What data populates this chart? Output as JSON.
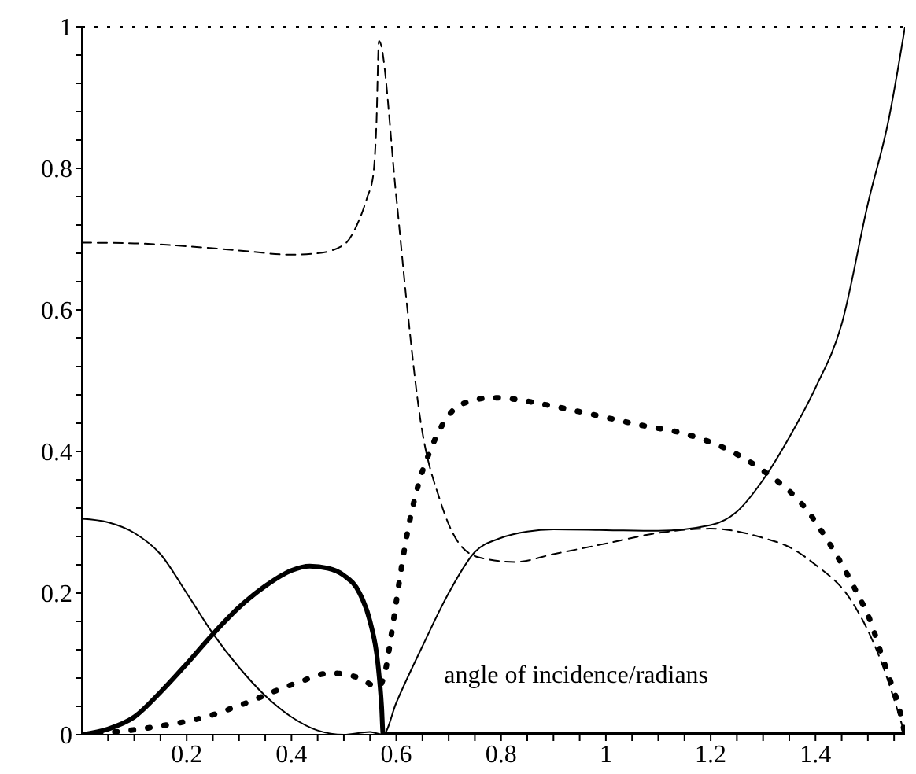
{
  "chart_data": {
    "type": "line",
    "xlabel": "angle of incidence/radians",
    "xlim": [
      0,
      1.5708
    ],
    "ylim": [
      0,
      1
    ],
    "xticks": [
      {
        "value": 0.05,
        "label": null
      },
      {
        "value": 0.1,
        "label": null
      },
      {
        "value": 0.15,
        "label": null
      },
      0.2,
      {
        "value": 0.25,
        "label": null
      },
      {
        "value": 0.3,
        "label": null
      },
      {
        "value": 0.35,
        "label": null
      },
      0.4,
      {
        "value": 0.45,
        "label": null
      },
      {
        "value": 0.5,
        "label": null
      },
      {
        "value": 0.55,
        "label": null
      },
      0.6,
      {
        "value": 0.65,
        "label": null
      },
      {
        "value": 0.7,
        "label": null
      },
      {
        "value": 0.75,
        "label": null
      },
      0.8,
      {
        "value": 0.85,
        "label": null
      },
      {
        "value": 0.9,
        "label": null
      },
      {
        "value": 0.95,
        "label": null
      },
      1,
      {
        "value": 1.05,
        "label": null
      },
      {
        "value": 1.1,
        "label": null
      },
      {
        "value": 1.15,
        "label": null
      },
      1.2,
      {
        "value": 1.25,
        "label": null
      },
      {
        "value": 1.3,
        "label": null
      },
      {
        "value": 1.35,
        "label": null
      },
      1.4,
      {
        "value": 1.45,
        "label": null
      },
      {
        "value": 1.5,
        "label": null
      },
      {
        "value": 1.55,
        "label": null
      }
    ],
    "yticks": [
      0,
      {
        "value": 0.04,
        "label": null
      },
      {
        "value": 0.08,
        "label": null
      },
      {
        "value": 0.12,
        "label": null
      },
      {
        "value": 0.16,
        "label": null
      },
      0.2,
      {
        "value": 0.24,
        "label": null
      },
      {
        "value": 0.28,
        "label": null
      },
      {
        "value": 0.32,
        "label": null
      },
      {
        "value": 0.36,
        "label": null
      },
      0.4,
      {
        "value": 0.44,
        "label": null
      },
      {
        "value": 0.48,
        "label": null
      },
      {
        "value": 0.52,
        "label": null
      },
      {
        "value": 0.56,
        "label": null
      },
      0.6,
      {
        "value": 0.64,
        "label": null
      },
      {
        "value": 0.68,
        "label": null
      },
      {
        "value": 0.72,
        "label": null
      },
      {
        "value": 0.76,
        "label": null
      },
      0.8,
      {
        "value": 0.84,
        "label": null
      },
      {
        "value": 0.88,
        "label": null
      },
      {
        "value": 0.92,
        "label": null
      },
      {
        "value": 0.96,
        "label": null
      },
      1
    ],
    "grid": false,
    "legend": false,
    "marker": "none",
    "ref_lines": [
      {
        "axis": "y",
        "value": 1,
        "color": "#000000",
        "line_style": "dotted"
      }
    ],
    "series": [
      {
        "color": "#000000",
        "line_style": "solid",
        "x": [
          0,
          0.05,
          0.1,
          0.15,
          0.2,
          0.25,
          0.3,
          0.35,
          0.4,
          0.45,
          0.5,
          0.55,
          0.575,
          0.6,
          0.65,
          0.7,
          0.75,
          0.8,
          0.85,
          0.9,
          1.0,
          1.1,
          1.2,
          1.25,
          1.3,
          1.35,
          1.4,
          1.45,
          1.5,
          1.54,
          1.5708
        ],
        "values": [
          0.305,
          0.3,
          0.285,
          0.255,
          0.2,
          0.143,
          0.095,
          0.055,
          0.025,
          0.006,
          0.0,
          0.004,
          0,
          0.045,
          0.125,
          0.2,
          0.258,
          0.278,
          0.287,
          0.29,
          0.289,
          0.288,
          0.296,
          0.315,
          0.36,
          0.42,
          0.49,
          0.58,
          0.75,
          0.87,
          1.0
        ]
      },
      {
        "color": "#000000",
        "line_style": "dashed",
        "x": [
          0,
          0.1,
          0.2,
          0.3,
          0.4,
          0.45,
          0.5,
          0.525,
          0.545,
          0.556,
          0.562,
          0.567,
          0.6,
          0.62,
          0.645,
          0.684,
          0.72,
          0.76,
          0.827,
          0.9,
          1.0,
          1.1,
          1.2,
          1.3,
          1.35,
          1.4,
          1.465,
          1.525,
          1.5708
        ],
        "values": [
          0.695,
          0.694,
          0.69,
          0.684,
          0.678,
          0.68,
          0.692,
          0.72,
          0.76,
          0.79,
          0.86,
          0.98,
          0.76,
          0.61,
          0.45,
          0.33,
          0.27,
          0.25,
          0.244,
          0.255,
          0.27,
          0.285,
          0.291,
          0.278,
          0.265,
          0.24,
          0.193,
          0.104,
          0
        ]
      },
      {
        "color": "#000000",
        "line_style": "solid",
        "x": [
          0,
          0.05,
          0.1,
          0.15,
          0.2,
          0.25,
          0.3,
          0.35,
          0.4,
          0.435,
          0.47,
          0.5,
          0.53,
          0.55,
          0.565,
          0.572,
          0.575,
          1.5708
        ],
        "values": [
          0,
          0.008,
          0.025,
          0.06,
          0.1,
          0.142,
          0.18,
          0.21,
          0.232,
          0.238,
          0.235,
          0.225,
          0.2,
          0.16,
          0.1,
          0.04,
          0,
          0
        ]
      },
      {
        "color": "#000000",
        "line_style": "dotted",
        "x": [
          0,
          0.13,
          0.245,
          0.3,
          0.41,
          0.475,
          0.53,
          0.565,
          0.58,
          0.59,
          0.607,
          0.617,
          0.642,
          0.663,
          0.725,
          0.785,
          0.9,
          0.964,
          1.075,
          1.14,
          1.245,
          1.3,
          1.385,
          1.42,
          1.478,
          1.505,
          1.523,
          1.54,
          1.558,
          1.5708
        ],
        "values": [
          0,
          0.01,
          0.027,
          0.041,
          0.073,
          0.087,
          0.08,
          0.067,
          0.093,
          0.138,
          0.222,
          0.268,
          0.353,
          0.398,
          0.467,
          0.476,
          0.464,
          0.454,
          0.436,
          0.427,
          0.398,
          0.373,
          0.316,
          0.278,
          0.202,
          0.16,
          0.12,
          0.082,
          0.042,
          0
        ]
      }
    ]
  }
}
